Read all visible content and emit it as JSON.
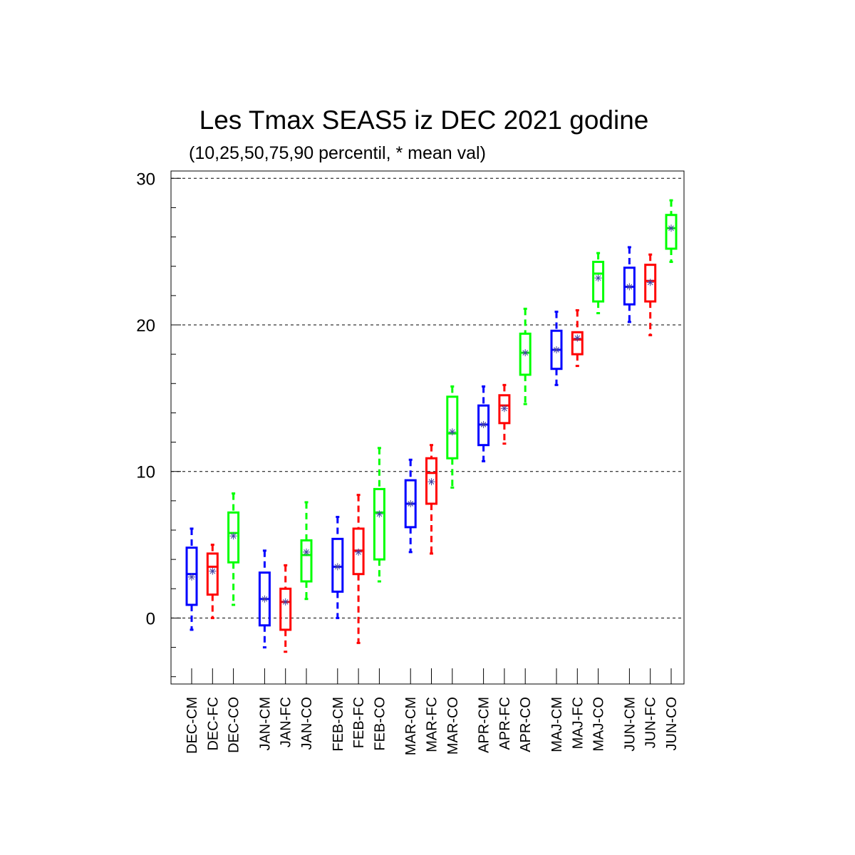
{
  "chart_data": {
    "type": "boxplot",
    "title": "Les Tmax SEAS5 iz DEC 2021 godine",
    "subtitle": "(10,25,50,75,90 percentil, * mean val)",
    "ylim": [
      -4.5,
      30.5
    ],
    "yticks": [
      0,
      10,
      20,
      30
    ],
    "grid_y": true,
    "group_colors": {
      "CM": "#0000ff",
      "FC": "#ff0000",
      "CO": "#00ff00"
    },
    "mean_marker_color": "#4040a0",
    "categories": [
      "DEC-CM",
      "DEC-FC",
      "DEC-CO",
      "JAN-CM",
      "JAN-FC",
      "JAN-CO",
      "FEB-CM",
      "FEB-FC",
      "FEB-CO",
      "MAR-CM",
      "MAR-FC",
      "MAR-CO",
      "APR-CM",
      "APR-FC",
      "APR-CO",
      "MAJ-CM",
      "MAJ-FC",
      "MAJ-CO",
      "JUN-CM",
      "JUN-FC",
      "JUN-CO"
    ],
    "boxes": [
      {
        "p10": -0.8,
        "p25": 0.9,
        "p50": 3.0,
        "p75": 4.8,
        "p90": 6.1,
        "mean": 2.8
      },
      {
        "p10": 0.0,
        "p25": 1.6,
        "p50": 3.5,
        "p75": 4.4,
        "p90": 5.0,
        "mean": 3.2
      },
      {
        "p10": 0.9,
        "p25": 3.8,
        "p50": 5.8,
        "p75": 7.2,
        "p90": 8.5,
        "mean": 5.6
      },
      {
        "p10": -2.0,
        "p25": -0.5,
        "p50": 1.3,
        "p75": 3.1,
        "p90": 4.6,
        "mean": 1.3
      },
      {
        "p10": -2.3,
        "p25": -0.8,
        "p50": 1.1,
        "p75": 2.0,
        "p90": 3.6,
        "mean": 1.1
      },
      {
        "p10": 1.3,
        "p25": 2.5,
        "p50": 4.3,
        "p75": 5.3,
        "p90": 7.9,
        "mean": 4.5
      },
      {
        "p10": 0.0,
        "p25": 1.8,
        "p50": 3.5,
        "p75": 5.4,
        "p90": 6.9,
        "mean": 3.5
      },
      {
        "p10": -1.7,
        "p25": 3.0,
        "p50": 4.6,
        "p75": 6.1,
        "p90": 8.4,
        "mean": 4.5
      },
      {
        "p10": 2.5,
        "p25": 4.0,
        "p50": 7.2,
        "p75": 8.8,
        "p90": 11.6,
        "mean": 7.1
      },
      {
        "p10": 4.5,
        "p25": 6.2,
        "p50": 7.8,
        "p75": 9.4,
        "p90": 10.8,
        "mean": 7.8
      },
      {
        "p10": 4.4,
        "p25": 7.8,
        "p50": 9.9,
        "p75": 10.9,
        "p90": 11.8,
        "mean": 9.3
      },
      {
        "p10": 8.9,
        "p25": 10.9,
        "p50": 12.6,
        "p75": 15.1,
        "p90": 15.8,
        "mean": 12.7
      },
      {
        "p10": 10.7,
        "p25": 11.8,
        "p50": 13.2,
        "p75": 14.5,
        "p90": 15.8,
        "mean": 13.2
      },
      {
        "p10": 11.9,
        "p25": 13.3,
        "p50": 14.5,
        "p75": 15.2,
        "p90": 15.9,
        "mean": 14.3
      },
      {
        "p10": 14.6,
        "p25": 16.6,
        "p50": 18.1,
        "p75": 19.4,
        "p90": 21.1,
        "mean": 18.1
      },
      {
        "p10": 15.9,
        "p25": 17.0,
        "p50": 18.3,
        "p75": 19.6,
        "p90": 20.9,
        "mean": 18.3
      },
      {
        "p10": 17.2,
        "p25": 18.0,
        "p50": 19.0,
        "p75": 19.5,
        "p90": 21.0,
        "mean": 19.1
      },
      {
        "p10": 20.8,
        "p25": 21.6,
        "p50": 23.5,
        "p75": 24.3,
        "p90": 24.9,
        "mean": 23.2
      },
      {
        "p10": 20.2,
        "p25": 21.4,
        "p50": 22.6,
        "p75": 23.9,
        "p90": 25.3,
        "mean": 22.6
      },
      {
        "p10": 19.3,
        "p25": 21.6,
        "p50": 23.0,
        "p75": 24.1,
        "p90": 24.8,
        "mean": 22.9
      },
      {
        "p10": 24.3,
        "p25": 25.2,
        "p50": 26.6,
        "p75": 27.5,
        "p90": 28.5,
        "mean": 26.6
      }
    ]
  }
}
